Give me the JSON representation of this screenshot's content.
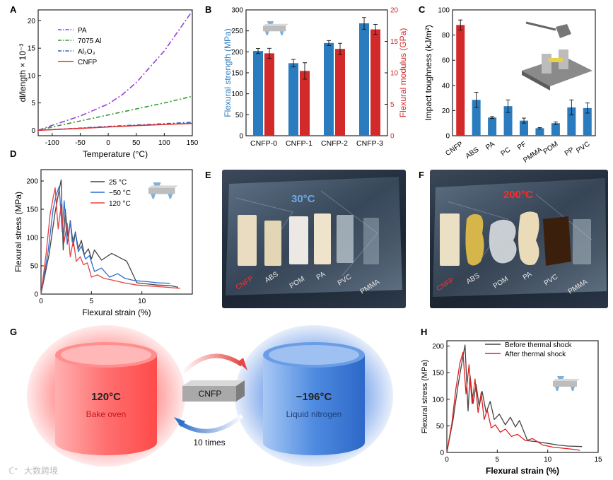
{
  "panel_labels": {
    "a": "A",
    "b": "B",
    "c": "C",
    "d": "D",
    "e": "E",
    "f": "F",
    "g": "G",
    "h": "H"
  },
  "chart_data": [
    {
      "id": "A",
      "type": "line",
      "xlabel": "Temperature (°C)",
      "ylabel": "dl/length × 10⁻³",
      "xlim": [
        -125,
        150
      ],
      "ylim": [
        -1,
        22
      ],
      "xticks": [
        -100,
        -50,
        0,
        50,
        100,
        150
      ],
      "yticks": [
        0,
        5,
        10,
        15,
        20
      ],
      "series": [
        {
          "name": "PA",
          "color": "#9b3fd9",
          "dash": "8,3,2,3",
          "x": [
            -125,
            -100,
            -50,
            0,
            25,
            50,
            100,
            150
          ],
          "y": [
            0,
            0.9,
            2.6,
            4.8,
            6.5,
            8.7,
            14.5,
            21.8
          ]
        },
        {
          "name": "7075 Al",
          "color": "#2e9a2e",
          "dash": "6,3,2,3",
          "x": [
            -125,
            -100,
            -50,
            0,
            50,
            100,
            150
          ],
          "y": [
            0,
            0.6,
            1.7,
            2.8,
            3.9,
            5,
            6.2
          ]
        },
        {
          "name": "Al₂O₃",
          "color": "#2f5fbf",
          "dash": "6,3,2,3",
          "x": [
            -125,
            -50,
            0,
            50,
            100,
            150
          ],
          "y": [
            0,
            0.4,
            0.7,
            0.95,
            1.2,
            1.45
          ]
        },
        {
          "name": "CNFP",
          "color": "#e03030",
          "dash": "",
          "x": [
            -125,
            -50,
            0,
            50,
            100,
            150
          ],
          "y": [
            0,
            0.35,
            0.6,
            0.85,
            1.05,
            1.25
          ]
        }
      ]
    },
    {
      "id": "B",
      "type": "bar",
      "categories": [
        "CNFP-0",
        "CNFP-1",
        "CNFP-2",
        "CNFP-3"
      ],
      "ylabel": "Flexural strength (MPa)",
      "ylabel_right": "Flexural modulus (GPa)",
      "ylim": [
        0,
        300
      ],
      "ylim_right": [
        0,
        20
      ],
      "yticks": [
        0,
        50,
        100,
        150,
        200,
        250,
        300
      ],
      "yticks_right": [
        0,
        5,
        10,
        15,
        20
      ],
      "series": [
        {
          "name": "Flexural strength",
          "axis": "left",
          "color": "#2b7cbf",
          "values": [
            202,
            173,
            221,
            268
          ],
          "errors": [
            6,
            9,
            6,
            14
          ]
        },
        {
          "name": "Flexural modulus",
          "axis": "right",
          "color": "#d22a2a",
          "values": [
            13.1,
            10.3,
            13.8,
            16.9
          ],
          "errors": [
            0.8,
            1.3,
            0.9,
            0.8
          ]
        }
      ]
    },
    {
      "id": "C",
      "type": "bar",
      "categories": [
        "CNFP",
        "ABS",
        "PA",
        "PC",
        "PF",
        "PMMA",
        "POM",
        "PP",
        "PVC"
      ],
      "ylabel": "Impact toughness (kJ/m²)",
      "ylim": [
        0,
        100
      ],
      "yticks": [
        0,
        20,
        40,
        60,
        80,
        100
      ],
      "values": [
        88,
        28.5,
        14.5,
        23.5,
        12,
        6,
        10,
        22.5,
        22
      ],
      "errors": [
        4,
        6,
        0.8,
        5,
        2,
        0.5,
        1,
        6,
        4
      ],
      "colors": [
        "#d22a2a",
        "#2b7cbf",
        "#2b7cbf",
        "#2b7cbf",
        "#2b7cbf",
        "#2b7cbf",
        "#2b7cbf",
        "#2b7cbf",
        "#2b7cbf"
      ]
    },
    {
      "id": "D",
      "type": "line",
      "xlabel": "Flexural strain (%)",
      "ylabel": "Flexural stress (MPa)",
      "xlim": [
        0,
        15
      ],
      "ylim": [
        0,
        220
      ],
      "xticks": [
        0,
        5,
        10
      ],
      "yticks": [
        0,
        50,
        100,
        150,
        200
      ],
      "series": [
        {
          "name": "25 °C",
          "color": "#444444",
          "x": [
            0,
            0.8,
            1.4,
            1.7,
            2,
            2.2,
            2.4,
            2.7,
            2.9,
            3.2,
            3.4,
            3.7,
            4,
            4.3,
            4.7,
            5,
            5.3,
            6,
            7,
            8.5,
            9.5,
            10.5,
            11.5,
            12.8,
            13.6
          ],
          "y": [
            0,
            70,
            145,
            175,
            202,
            78,
            150,
            95,
            130,
            85,
            110,
            80,
            95,
            70,
            80,
            62,
            78,
            60,
            72,
            58,
            20,
            18,
            16,
            15,
            12
          ]
        },
        {
          "name": "−50 °C",
          "color": "#2a6fd1",
          "x": [
            0,
            0.7,
            1.2,
            1.5,
            1.8,
            2.1,
            2.3,
            2.6,
            2.9,
            3.1,
            3.4,
            3.7,
            4,
            4.4,
            4.8,
            5.3,
            6,
            6.8,
            7.6,
            8.3,
            9.2,
            10.5,
            11.5,
            12.8
          ],
          "y": [
            0,
            75,
            150,
            175,
            190,
            110,
            165,
            88,
            128,
            92,
            108,
            75,
            85,
            62,
            68,
            40,
            46,
            30,
            36,
            28,
            24,
            22,
            20,
            19
          ]
        },
        {
          "name": "120 °C",
          "color": "#e84040",
          "x": [
            0,
            0.5,
            0.9,
            1.2,
            1.4,
            1.7,
            2,
            2.3,
            2.6,
            2.9,
            3.2,
            3.5,
            3.9,
            4.2,
            4.6,
            5,
            5.6,
            6.2,
            7,
            8.2,
            9.5,
            11,
            12.5,
            13.8
          ],
          "y": [
            0,
            70,
            140,
            170,
            188,
            115,
            158,
            92,
            125,
            66,
            95,
            58,
            66,
            52,
            55,
            30,
            34,
            28,
            25,
            20,
            16,
            14,
            12,
            10
          ]
        }
      ]
    },
    {
      "id": "H",
      "type": "line",
      "xlabel": "Flexural strain (%)",
      "ylabel": "Flexural stress (MPa)",
      "xlim": [
        0,
        15
      ],
      "ylim": [
        0,
        210
      ],
      "xticks": [
        0,
        5,
        10,
        15
      ],
      "yticks": [
        0,
        50,
        100,
        150,
        200
      ],
      "series": [
        {
          "name": "Before thermal shock",
          "color": "#444444",
          "x": [
            0,
            0.6,
            1.1,
            1.5,
            1.8,
            2.1,
            2.3,
            2.6,
            2.9,
            3.2,
            3.5,
            3.9,
            4.3,
            4.7,
            5.2,
            5.8,
            6.3,
            6.8,
            7.2,
            8,
            9,
            10,
            11,
            12,
            13.4
          ],
          "y": [
            0,
            60,
            125,
            170,
            202,
            78,
            145,
            92,
            128,
            86,
            115,
            75,
            96,
            62,
            72,
            52,
            66,
            48,
            60,
            22,
            20,
            17,
            14,
            12,
            11
          ]
        },
        {
          "name": "After thermal shock",
          "color": "#e02020",
          "x": [
            0,
            0.5,
            0.9,
            1.3,
            1.6,
            1.9,
            2.2,
            2.5,
            2.8,
            3.1,
            3.4,
            3.7,
            4,
            4.4,
            4.8,
            5.3,
            5.8,
            6.4,
            7,
            7.8,
            8.5,
            9.5,
            10.5,
            11.5,
            12.5,
            13.2
          ],
          "y": [
            0,
            55,
            120,
            168,
            188,
            110,
            165,
            92,
            138,
            75,
            112,
            62,
            80,
            46,
            52,
            38,
            44,
            30,
            34,
            22,
            26,
            14,
            10,
            8,
            6,
            4
          ]
        }
      ]
    }
  ],
  "panelB": {
    "cat_labels": [
      "CNFP-0",
      "CNFP-1",
      "CNFP-2",
      "CNFP-3"
    ]
  },
  "panelD": {
    "legend": [
      "25 °C",
      "−50 °C",
      "120 °C"
    ]
  },
  "panelE": {
    "temp": "30°C",
    "samples": [
      "CNFP",
      "ABS",
      "POM",
      "PA",
      "PVC",
      "PMMA"
    ]
  },
  "panelF": {
    "temp": "200°C",
    "samples": [
      "CNFP",
      "ABS",
      "POM",
      "PA",
      "PVC",
      "PMMA"
    ]
  },
  "panelG": {
    "hot_temp": "120°C",
    "hot_label": "Bake oven",
    "cold_temp": "−196°C",
    "cold_label": "Liquid nitrogen",
    "center_label": "CNFP",
    "cycles": "10 times"
  },
  "panelH": {
    "legend": [
      "Before thermal shock",
      "After thermal shock"
    ]
  },
  "watermark": "大数跨境",
  "colors": {
    "blue": "#2b7cbf",
    "red": "#d22a2a"
  }
}
